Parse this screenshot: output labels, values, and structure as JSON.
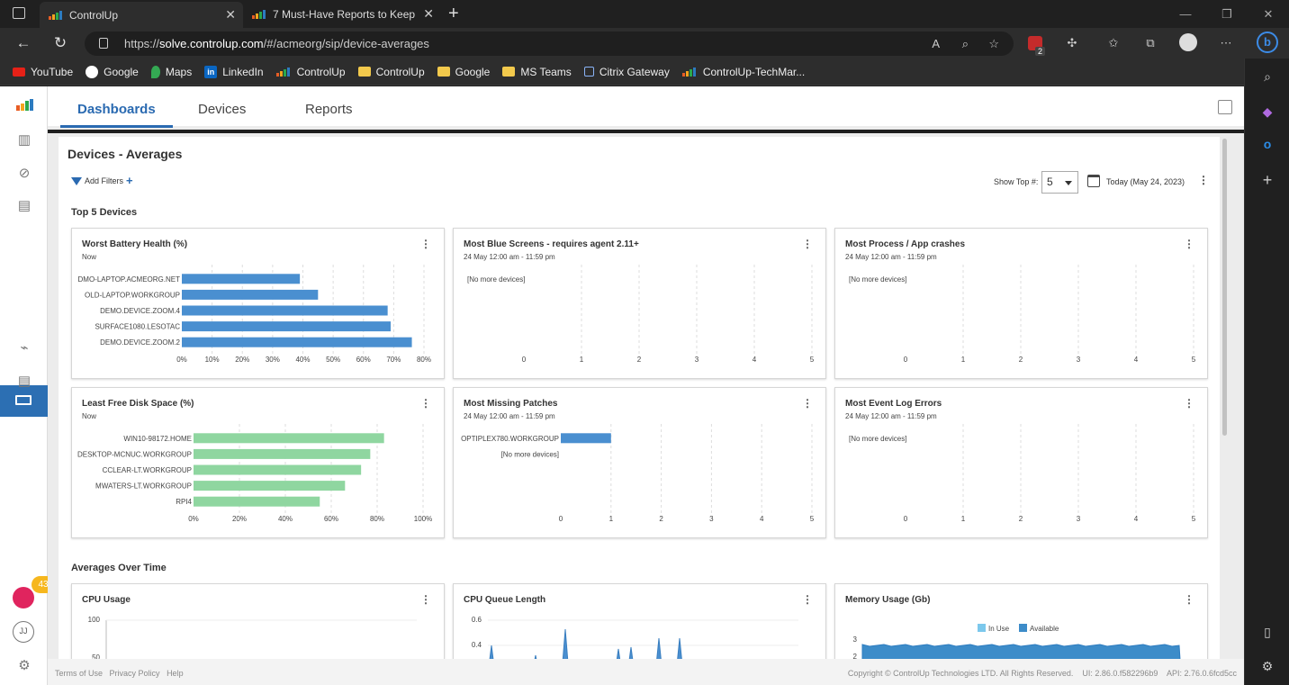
{
  "browser": {
    "tabs": [
      {
        "title": "ControlUp",
        "active": true
      },
      {
        "title": "7 Must-Have Reports to Keep yo",
        "active": false
      }
    ],
    "url_scheme": "https://",
    "url_host": "solve.controlup.com",
    "url_path": "/#/acmeorg/sip/device-averages",
    "extension_badge": "2",
    "bookmarks": [
      "YouTube",
      "Google",
      "Maps",
      "LinkedIn",
      "ControlUp",
      "ControlUp",
      "Google",
      "MS Teams",
      "Citrix Gateway",
      "ControlUp-TechMar..."
    ]
  },
  "app": {
    "nav_tabs": [
      "Dashboards",
      "Devices",
      "Reports"
    ],
    "active_tab": "Dashboards",
    "notification_count": "43",
    "user_initials": "JJ"
  },
  "page": {
    "title": "Devices - Averages",
    "add_filters": "Add Filters",
    "show_top_label": "Show Top #:",
    "show_top_value": "5",
    "date_label": "Today (May 24, 2023)",
    "section_top": "Top 5 Devices",
    "section_time": "Averages Over Time"
  },
  "cards": {
    "battery": {
      "title": "Worst Battery Health (%)",
      "subtitle": "Now",
      "chart_data": {
        "type": "bar",
        "orientation": "horizontal",
        "categories": [
          "DMO-LAPTOP.ACMEORG.NET",
          "OLD-LAPTOP.WORKGROUP",
          "DEMO.DEVICE.ZOOM.4",
          "SURFACE1080.LESOTAC",
          "DEMO.DEVICE.ZOOM.2"
        ],
        "values": [
          39,
          45,
          68,
          69,
          76
        ],
        "ticks": [
          "0%",
          "10%",
          "20%",
          "30%",
          "40%",
          "50%",
          "60%",
          "70%",
          "80%"
        ],
        "xlim": [
          0,
          80
        ],
        "color": "#4a8fd0"
      }
    },
    "bluescreens": {
      "title": "Most Blue Screens - requires agent 2.11+",
      "subtitle": "24 May 12:00 am - 11:59 pm",
      "empty_label": "[No more devices]",
      "ticks": [
        "0",
        "1",
        "2",
        "3",
        "4",
        "5"
      ]
    },
    "crashes": {
      "title": "Most Process / App crashes",
      "subtitle": "24 May 12:00 am - 11:59 pm",
      "empty_label": "[No more devices]",
      "ticks": [
        "0",
        "1",
        "2",
        "3",
        "4",
        "5"
      ]
    },
    "disk": {
      "title": "Least Free Disk Space (%)",
      "subtitle": "Now",
      "chart_data": {
        "type": "bar",
        "orientation": "horizontal",
        "categories": [
          "WIN10-98172.HOME",
          "DESKTOP-MCNUC.WORKGROUP",
          "CCLEAR-LT.WORKGROUP",
          "MWATERS-LT.WORKGROUP",
          "RPI4"
        ],
        "values": [
          83,
          77,
          73,
          66,
          55
        ],
        "ticks": [
          "0%",
          "20%",
          "40%",
          "60%",
          "80%",
          "100%"
        ],
        "xlim": [
          0,
          100
        ],
        "color": "#8fd6a0"
      }
    },
    "patches": {
      "title": "Most Missing Patches",
      "subtitle": "24 May 12:00 am - 11:59 pm",
      "chart_data": {
        "type": "bar",
        "orientation": "horizontal",
        "categories": [
          "OPTIPLEX780.WORKGROUP",
          "[No more devices]"
        ],
        "values": [
          1,
          0
        ],
        "ticks": [
          "0",
          "1",
          "2",
          "3",
          "4",
          "5"
        ],
        "xlim": [
          0,
          5
        ],
        "color": "#4a8fd0"
      }
    },
    "eventlog": {
      "title": "Most Event Log Errors",
      "subtitle": "24 May 12:00 am - 11:59 pm",
      "empty_label": "[No more devices]",
      "ticks": [
        "0",
        "1",
        "2",
        "3",
        "4",
        "5"
      ]
    },
    "cpu": {
      "title": "CPU Usage",
      "chart_data": {
        "type": "line",
        "yticks": [
          "100",
          "50"
        ]
      }
    },
    "cpuqueue": {
      "title": "CPU Queue Length",
      "chart_data": {
        "type": "area",
        "yticks": [
          "0.6",
          "0.4"
        ],
        "color": "#4a8fd0"
      }
    },
    "memory": {
      "title": "Memory Usage (Gb)",
      "chart_data": {
        "type": "area",
        "legend": [
          "In Use",
          "Available"
        ],
        "legend_colors": [
          "#7cc8ec",
          "#3d8cc9"
        ],
        "yticks": [
          "3",
          "2"
        ]
      }
    }
  },
  "footer": {
    "links": [
      "Terms of Use",
      "Privacy Policy",
      "Help"
    ],
    "copyright": "Copyright © ControlUp Technologies LTD. All Rights Reserved.",
    "ui_version": "UI: 2.86.0.f582296b9",
    "api_version": "API: 2.76.0.6fcd5cc"
  }
}
